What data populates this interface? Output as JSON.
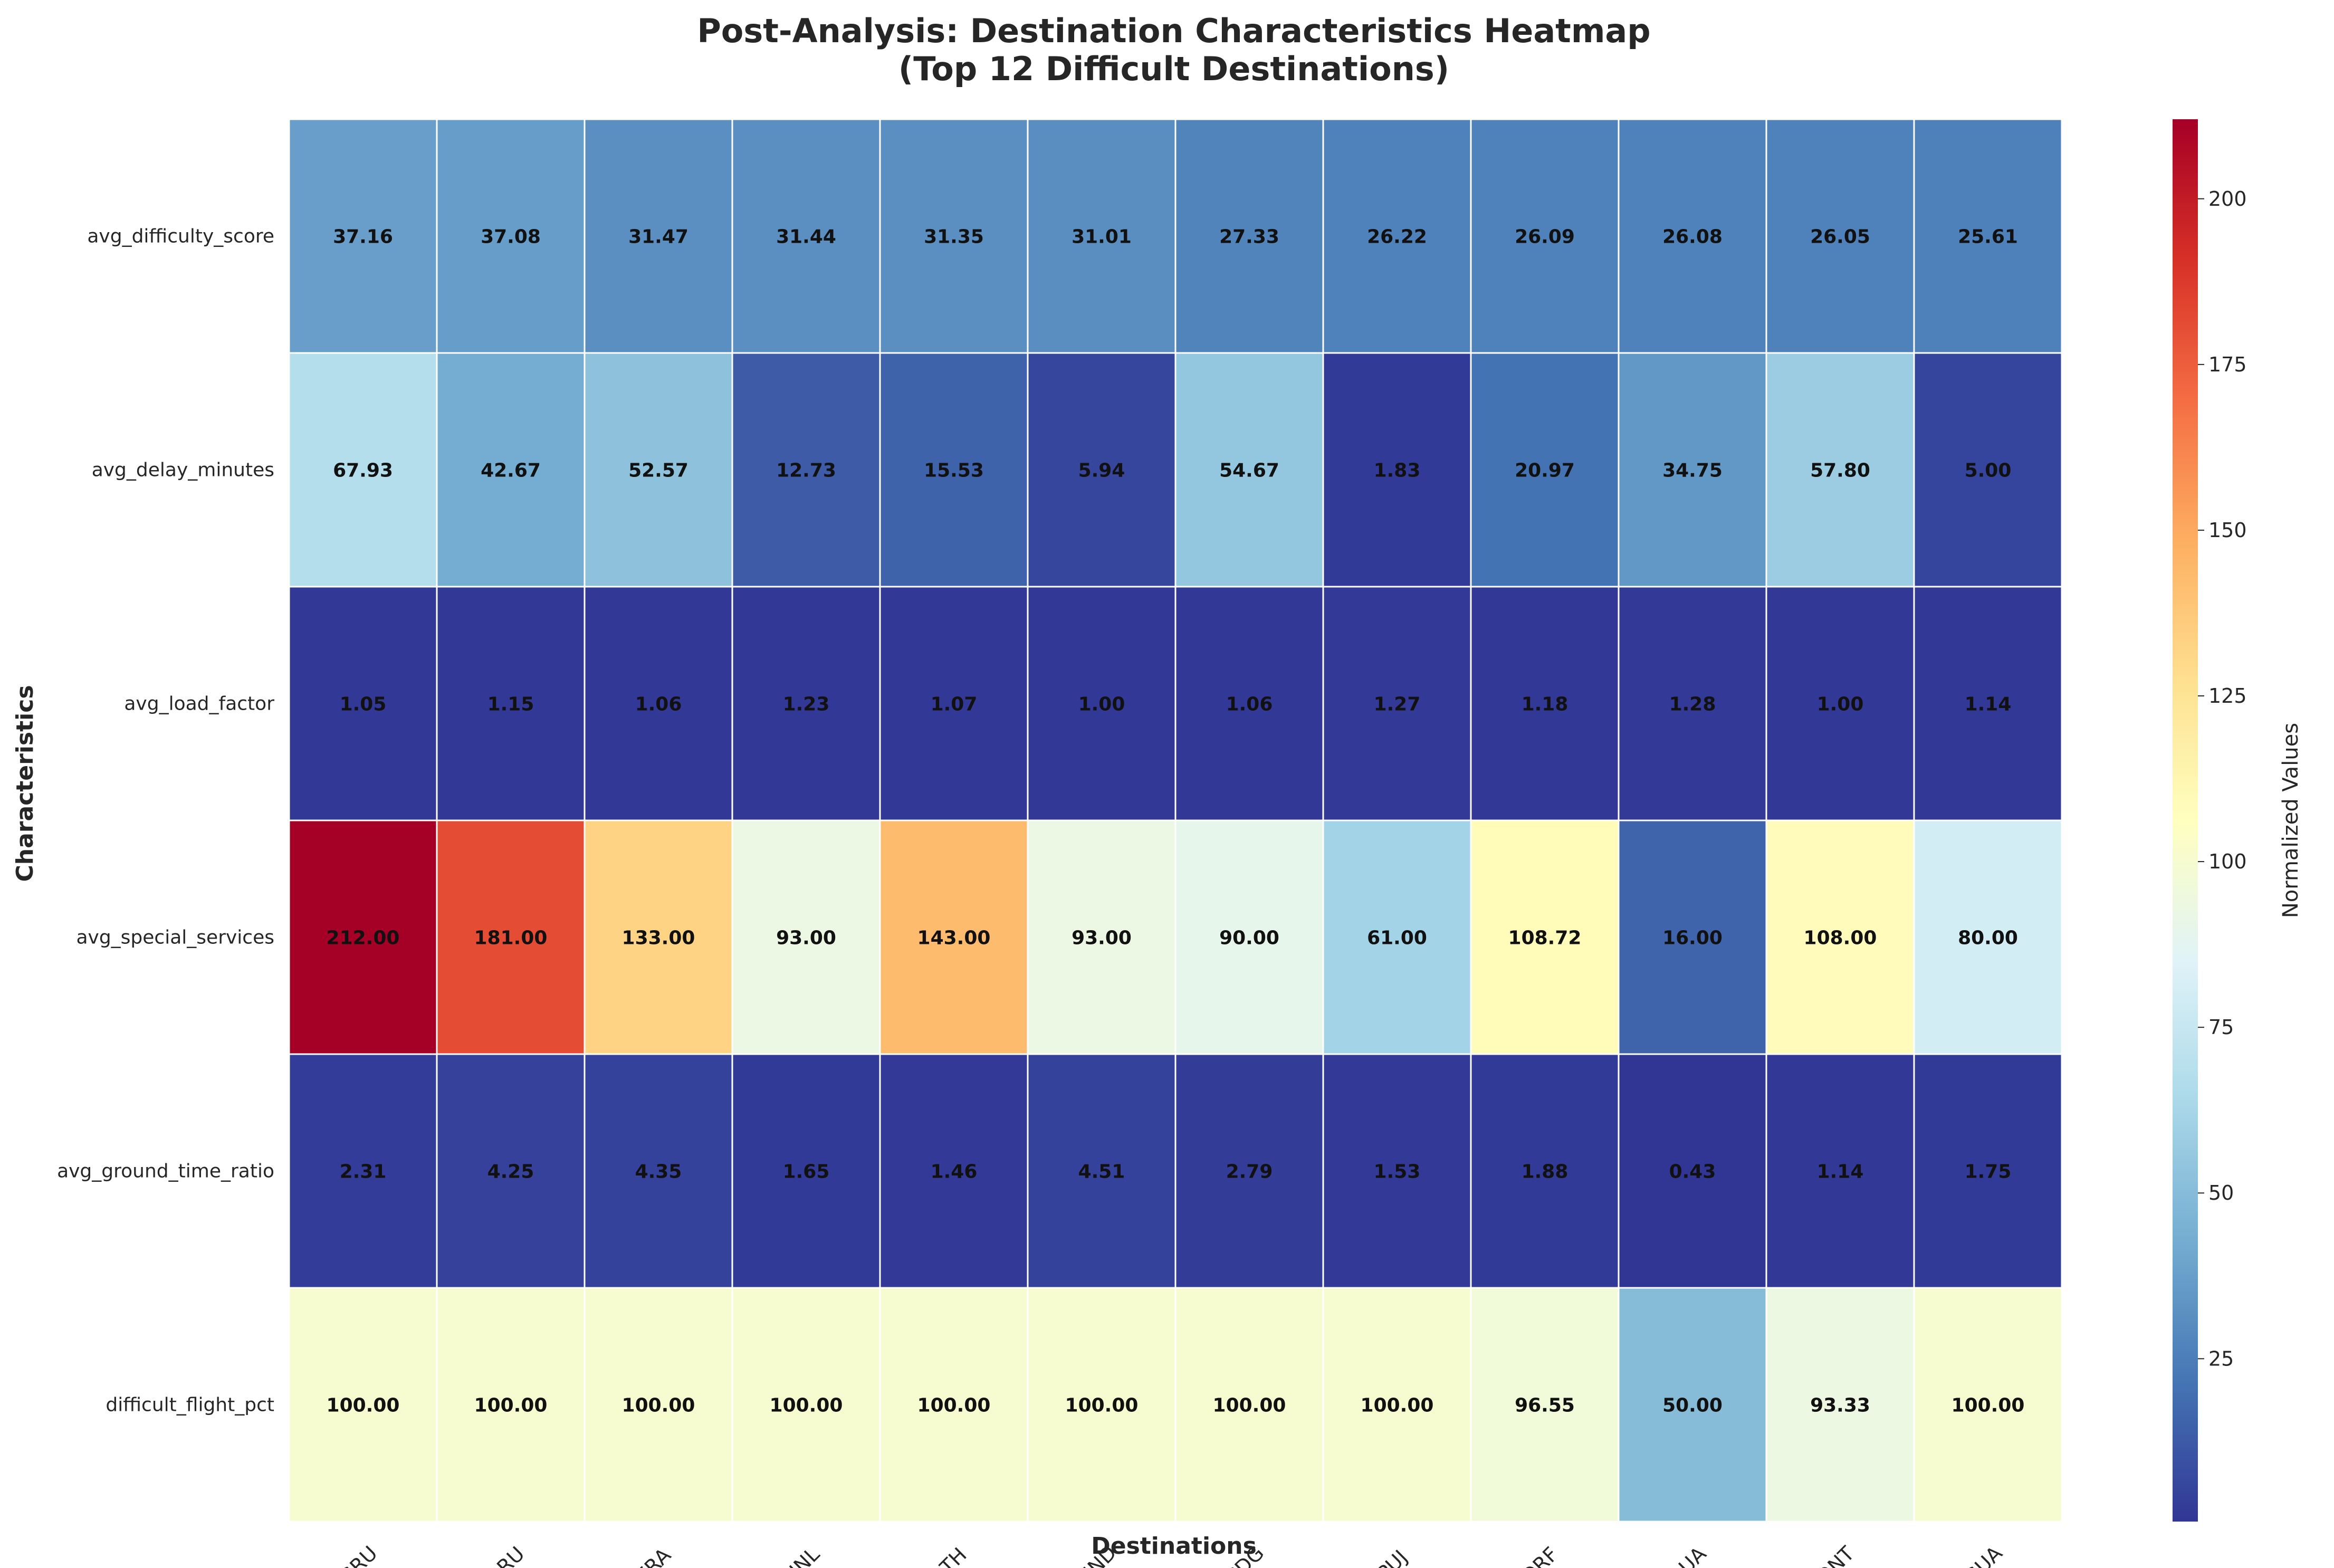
{
  "chart_data": {
    "type": "heatmap",
    "title": "Post-Analysis: Destination Characteristics Heatmap",
    "subtitle": "(Top 12 Difficult Destinations)",
    "xlabel": "Destinations",
    "ylabel": "Characteristics",
    "colorbar_label": "Normalized Values",
    "colormap": "RdYlBu_r",
    "color_range": [
      0.43,
      212
    ],
    "colorbar_ticks": [
      25,
      50,
      75,
      100,
      125,
      150,
      175,
      200
    ],
    "x_categories": [
      "GRU",
      "BRU",
      "FRA",
      "HNL",
      "ATH",
      "HND",
      "CDG",
      "PUJ",
      "ORF",
      "AUA",
      "ONT",
      "GUA"
    ],
    "y_categories": [
      "avg_difficulty_score",
      "avg_delay_minutes",
      "avg_load_factor",
      "avg_special_services",
      "avg_ground_time_ratio",
      "difficult_flight_pct"
    ],
    "values": [
      [
        37.16,
        37.08,
        31.47,
        31.44,
        31.35,
        31.01,
        27.33,
        26.22,
        26.09,
        26.08,
        26.05,
        25.61
      ],
      [
        67.93,
        42.67,
        52.57,
        12.73,
        15.53,
        5.94,
        54.67,
        1.83,
        20.97,
        34.75,
        57.8,
        5.0
      ],
      [
        1.05,
        1.15,
        1.06,
        1.23,
        1.07,
        1.0,
        1.06,
        1.27,
        1.18,
        1.28,
        1.0,
        1.14
      ],
      [
        212.0,
        181.0,
        133.0,
        93.0,
        143.0,
        93.0,
        90.0,
        61.0,
        108.72,
        16.0,
        108.0,
        80.0
      ],
      [
        2.31,
        4.25,
        4.35,
        1.65,
        1.46,
        4.51,
        2.79,
        1.53,
        1.88,
        0.43,
        1.14,
        1.75
      ],
      [
        100.0,
        100.0,
        100.0,
        100.0,
        100.0,
        100.0,
        100.0,
        100.0,
        96.55,
        50.0,
        93.33,
        100.0
      ]
    ],
    "value_format": "two decimals"
  }
}
